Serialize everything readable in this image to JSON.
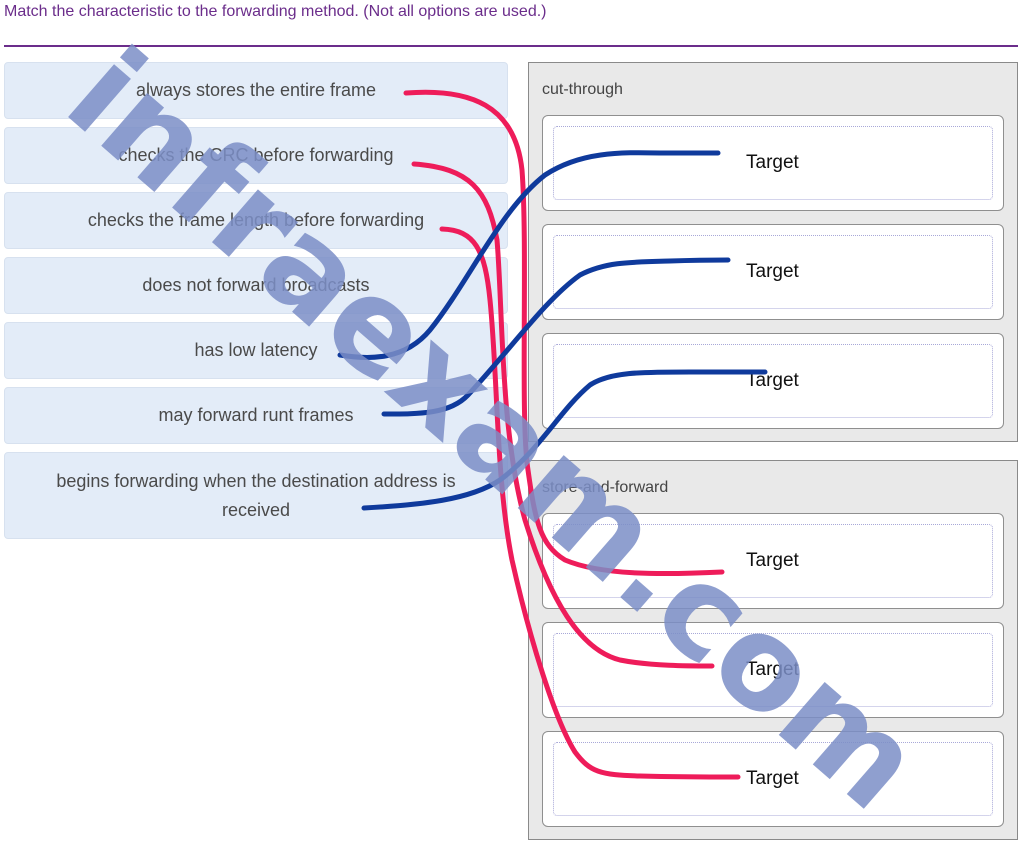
{
  "question": "Match the characteristic to the forwarding method. (Not all options are used.)",
  "options": [
    "always stores the entire frame",
    "checks the CRC before forwarding",
    "checks the frame length before forwarding",
    "does not forward broadcasts",
    "has low latency",
    "may forward runt frames",
    "begins forwarding when the destination address is received"
  ],
  "groups": [
    {
      "title": "cut-through",
      "targets": [
        "Target",
        "Target",
        "Target"
      ]
    },
    {
      "title": "store-and-forward",
      "targets": [
        "Target",
        "Target",
        "Target"
      ]
    }
  ],
  "watermark": "infraexam.com",
  "colors": {
    "question_text": "#6b2d8b",
    "option_bg": "#e3ecf8",
    "group_bg": "#e9e9e9",
    "annotation_red": "#ee1c5a",
    "annotation_blue": "#0f3a9c",
    "watermark": "#7b8ec7"
  }
}
